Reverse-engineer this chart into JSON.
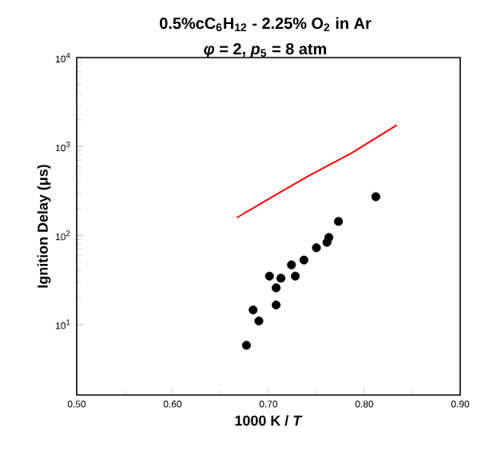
{
  "chart_data": {
    "type": "scatter",
    "title": "0.5%cC$_{6}$H$_{12}$ - 2.25% O$_{2}$ in Ar",
    "subtitle": "*φ* = 2, *p*$_{5}$ = 8 atm",
    "xlabel": "1000 K / *T*",
    "ylabel": "Ignition Delay (μs)",
    "log": "y",
    "xlim": [
      0.5,
      0.9
    ],
    "ylim": [
      1.6,
      10000
    ],
    "xticks": [
      {
        "value": 0.5,
        "label": "0.50"
      },
      {
        "value": 0.6,
        "label": "0.60"
      },
      {
        "value": 0.7,
        "label": "0.70"
      },
      {
        "value": 0.8,
        "label": "0.80"
      },
      {
        "value": 0.9,
        "label": "0.90"
      }
    ],
    "yticks": [
      {
        "value": 10,
        "label": "10$^{1}$"
      },
      {
        "value": 100,
        "label": "10$^{2}$"
      },
      {
        "value": 1000,
        "label": "10$^{3}$"
      },
      {
        "value": 10000,
        "label": "10$^{4}$"
      }
    ],
    "series": [
      {
        "marker": "circle",
        "color": "#000000",
        "x": [
          0.677,
          0.684,
          0.69,
          0.701,
          0.708,
          0.708,
          0.713,
          0.724,
          0.728,
          0.737,
          0.75,
          0.761,
          0.763,
          0.773,
          0.812
        ],
        "values": [
          5.8,
          14.5,
          10.9,
          34.8,
          25.7,
          16.5,
          33.0,
          46.6,
          34.8,
          52.8,
          72.6,
          83.5,
          94.7,
          143.5,
          272
        ]
      },
      {
        "type": "line",
        "marker": "none",
        "color": "#ff0000",
        "x": [
          0.667,
          0.708,
          0.742,
          0.786,
          0.834
        ],
        "values": [
          158,
          287,
          467,
          835,
          1742
        ]
      }
    ]
  }
}
